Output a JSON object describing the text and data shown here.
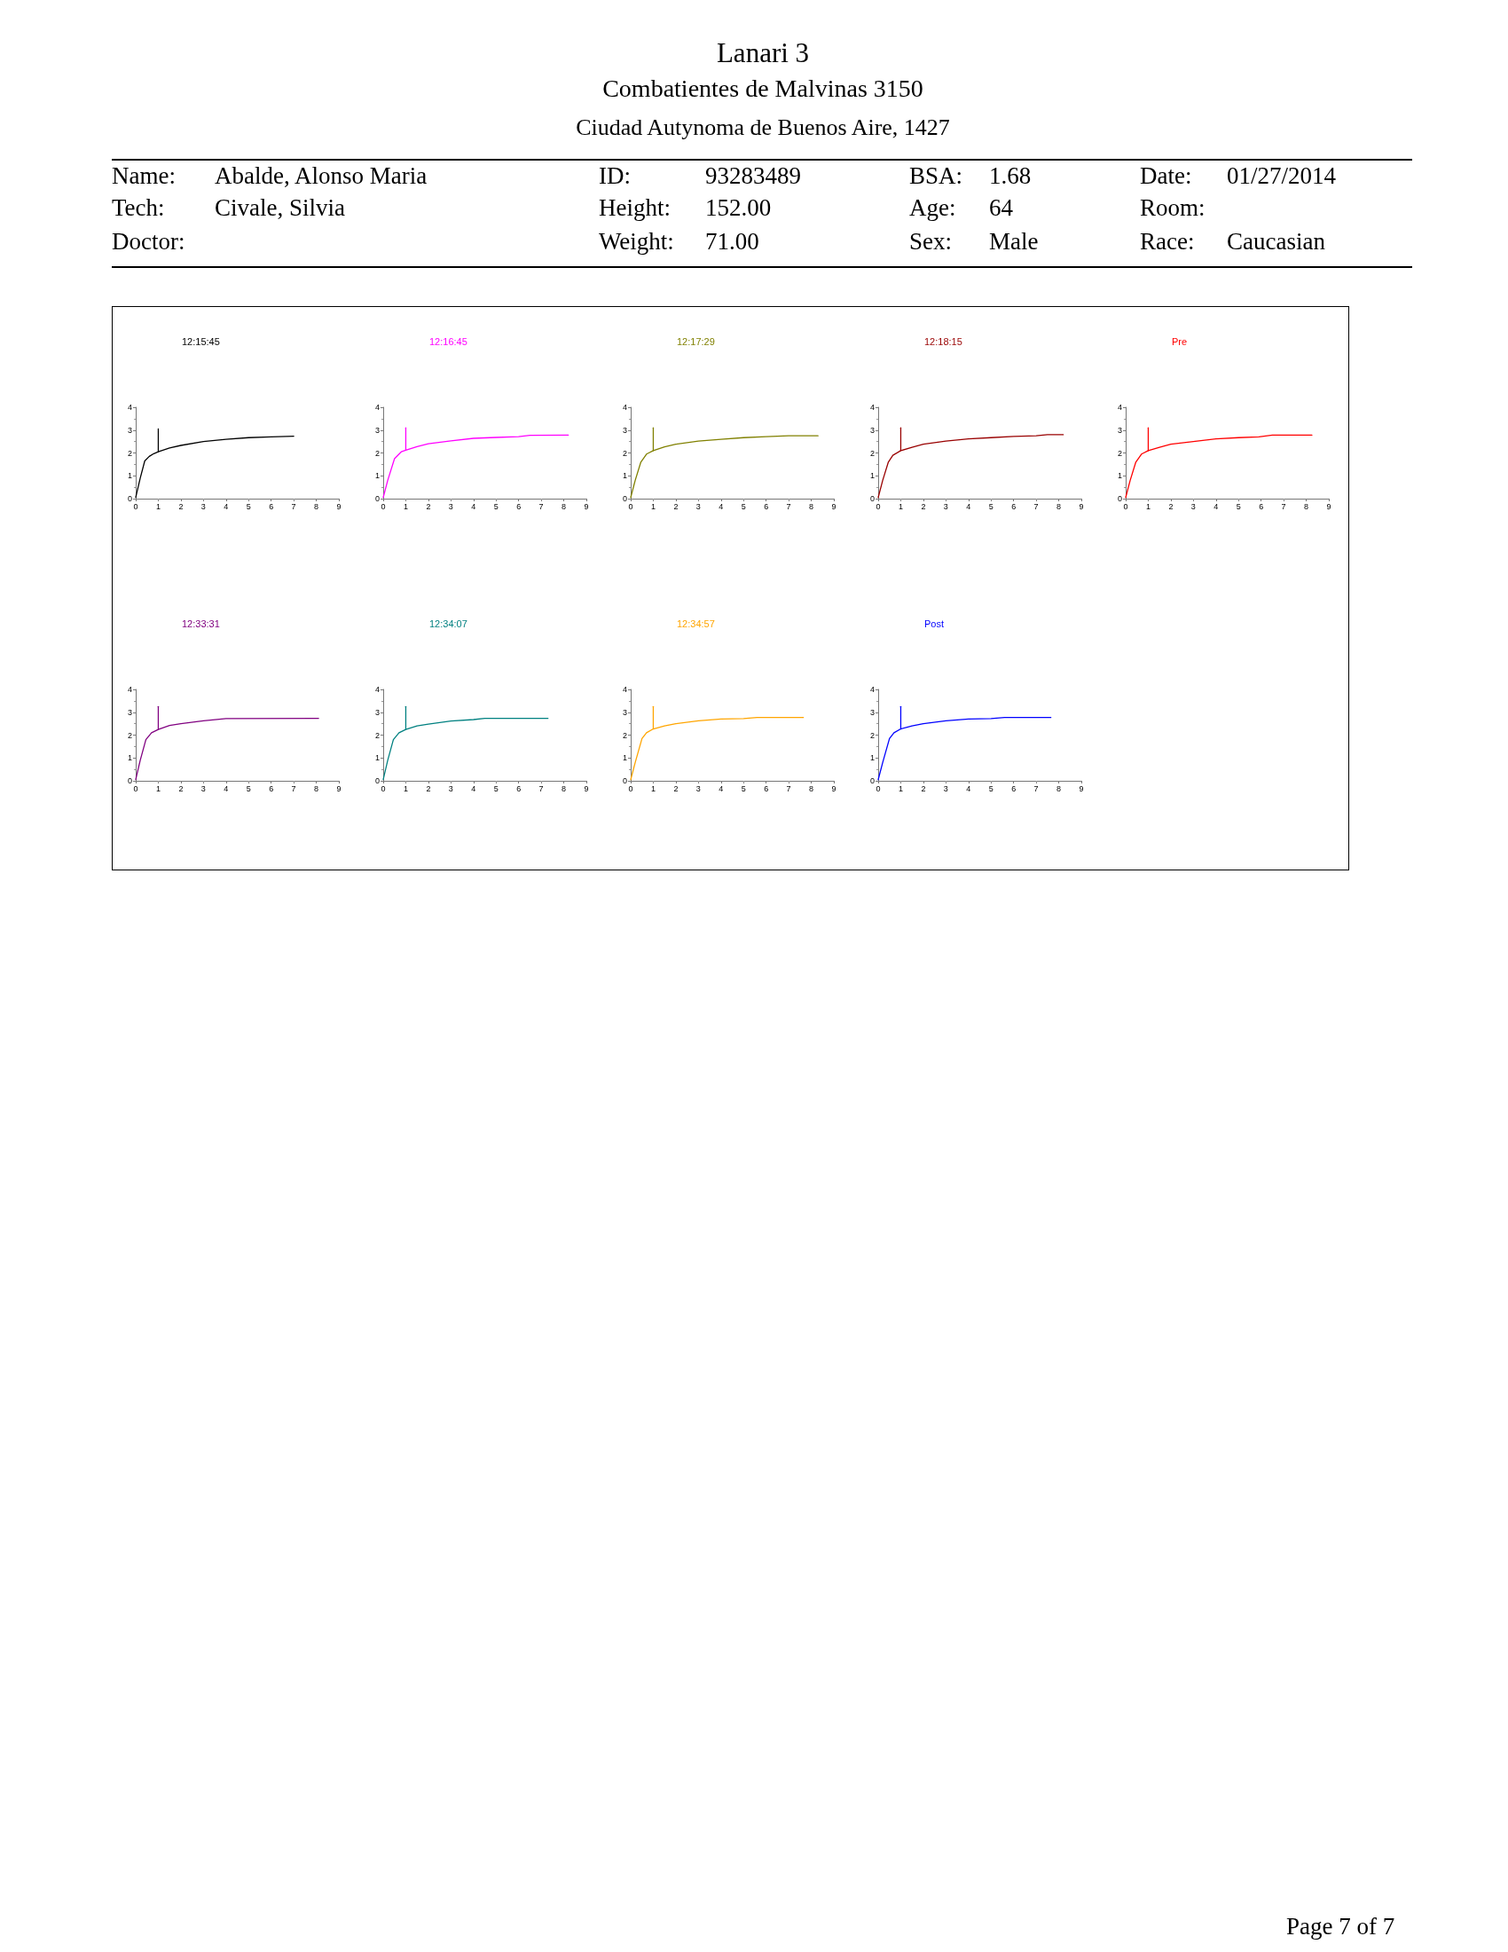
{
  "chart_data": [
    {
      "type": "other",
      "title": "Lanari 3",
      "annotations": [
        "Combatientes de Malvinas 3150",
        "Ciudad Autynoma de Buenos Aire, 1427",
        "Name:",
        "Abalde, Alonso Maria",
        "ID:",
        "93283489",
        "BSA:",
        "1.68",
        "Date:",
        "01/27/2014",
        "Tech:",
        "Civale, Silvia",
        "Height:",
        "152.00",
        "Age:",
        "64",
        "Room:",
        "Doctor:",
        "Weight:",
        "71.00",
        "Sex:",
        "Male",
        "Race:",
        "Caucasian",
        "Page 7 of 7"
      ]
    },
    {
      "type": "line",
      "title": "12:15:45",
      "xlim": [
        0,
        9
      ],
      "xticks": [
        0,
        1,
        2,
        3,
        4,
        5,
        6,
        7,
        8,
        9
      ],
      "ylim": [
        0,
        4
      ],
      "yticks": [
        0,
        1,
        2,
        3,
        4
      ],
      "grid": false,
      "marker": "none",
      "line_style": "solid",
      "series": [
        {
          "color": "#000000",
          "x": [
            0,
            0.2,
            0.4,
            0.6,
            0.8,
            1,
            1.5,
            2,
            3,
            4,
            5,
            6,
            7
          ],
          "values": [
            0.05,
            0.9,
            1.65,
            1.85,
            1.97,
            2.05,
            2.22,
            2.33,
            2.5,
            2.6,
            2.67,
            2.7,
            2.73
          ]
        },
        {
          "color": "#000000",
          "x": [
            1,
            1
          ],
          "values": [
            2.05,
            3.05
          ]
        }
      ]
    },
    {
      "type": "line",
      "title": "12:16:45",
      "xlim": [
        0,
        9
      ],
      "xticks": [
        0,
        1,
        2,
        3,
        4,
        5,
        6,
        7,
        8,
        9
      ],
      "ylim": [
        0,
        4
      ],
      "yticks": [
        0,
        1,
        2,
        3,
        4
      ],
      "grid": false,
      "marker": "none",
      "line_style": "solid",
      "series": [
        {
          "color": "#ff00ff",
          "x": [
            0,
            0.2,
            0.5,
            0.8,
            1,
            1.5,
            2,
            3,
            4,
            5,
            6,
            6.5,
            8.2
          ],
          "values": [
            0.05,
            0.8,
            1.75,
            2.05,
            2.12,
            2.28,
            2.4,
            2.53,
            2.64,
            2.68,
            2.71,
            2.77,
            2.78
          ]
        },
        {
          "color": "#ff00ff",
          "x": [
            1,
            1
          ],
          "values": [
            2.12,
            3.1
          ]
        }
      ]
    },
    {
      "type": "line",
      "title": "12:17:29",
      "xlim": [
        0,
        9
      ],
      "xticks": [
        0,
        1,
        2,
        3,
        4,
        5,
        6,
        7,
        8,
        9
      ],
      "ylim": [
        0,
        4
      ],
      "yticks": [
        0,
        1,
        2,
        3,
        4
      ],
      "grid": false,
      "marker": "none",
      "line_style": "solid",
      "series": [
        {
          "color": "#808000",
          "x": [
            0,
            0.2,
            0.45,
            0.7,
            1,
            1.5,
            2,
            3,
            4,
            5,
            6,
            7,
            8.3
          ],
          "values": [
            0.05,
            0.8,
            1.6,
            1.95,
            2.1,
            2.27,
            2.38,
            2.52,
            2.6,
            2.67,
            2.71,
            2.75,
            2.75
          ]
        },
        {
          "color": "#808000",
          "x": [
            1,
            1
          ],
          "values": [
            2.1,
            3.1
          ]
        }
      ]
    },
    {
      "type": "line",
      "title": "12:18:15",
      "xlim": [
        0,
        9
      ],
      "xticks": [
        0,
        1,
        2,
        3,
        4,
        5,
        6,
        7,
        8,
        9
      ],
      "ylim": [
        0,
        4
      ],
      "yticks": [
        0,
        1,
        2,
        3,
        4
      ],
      "grid": false,
      "marker": "none",
      "line_style": "solid",
      "series": [
        {
          "color": "#990000",
          "x": [
            0,
            0.2,
            0.45,
            0.65,
            1,
            1.5,
            2,
            3,
            4,
            5,
            6,
            7,
            7.5,
            8.2
          ],
          "values": [
            0.05,
            0.8,
            1.6,
            1.9,
            2.1,
            2.25,
            2.38,
            2.52,
            2.62,
            2.67,
            2.72,
            2.75,
            2.8,
            2.8
          ]
        },
        {
          "color": "#990000",
          "x": [
            1,
            1
          ],
          "values": [
            2.1,
            3.1
          ]
        }
      ]
    },
    {
      "type": "line",
      "title": "Pre",
      "xlim": [
        0,
        9
      ],
      "xticks": [
        0,
        1,
        2,
        3,
        4,
        5,
        6,
        7,
        8,
        9
      ],
      "ylim": [
        0,
        4
      ],
      "yticks": [
        0,
        1,
        2,
        3,
        4
      ],
      "grid": false,
      "marker": "none",
      "line_style": "solid",
      "series": [
        {
          "color": "#ff0000",
          "x": [
            0,
            0.2,
            0.45,
            0.7,
            1,
            1.5,
            2,
            3,
            4,
            5,
            5.9,
            6.5,
            8.25
          ],
          "values": [
            0.05,
            0.8,
            1.6,
            1.95,
            2.1,
            2.25,
            2.38,
            2.5,
            2.62,
            2.67,
            2.7,
            2.78,
            2.78
          ]
        },
        {
          "color": "#ff0000",
          "x": [
            1,
            1
          ],
          "values": [
            2.1,
            3.1
          ]
        }
      ]
    },
    {
      "type": "line",
      "title": "12:33:31",
      "xlim": [
        0,
        9
      ],
      "xticks": [
        0,
        1,
        2,
        3,
        4,
        5,
        6,
        7,
        8,
        9
      ],
      "ylim": [
        0,
        4
      ],
      "yticks": [
        0,
        1,
        2,
        3,
        4
      ],
      "grid": false,
      "marker": "none",
      "line_style": "solid",
      "series": [
        {
          "color": "#800080",
          "x": [
            0,
            0.2,
            0.45,
            0.7,
            1,
            1.5,
            2,
            3,
            4,
            8.1
          ],
          "values": [
            0.05,
            0.9,
            1.8,
            2.1,
            2.25,
            2.42,
            2.5,
            2.63,
            2.72,
            2.73
          ]
        },
        {
          "color": "#800080",
          "x": [
            1,
            1
          ],
          "values": [
            2.25,
            3.25
          ]
        }
      ]
    },
    {
      "type": "line",
      "title": "12:34:07",
      "xlim": [
        0,
        9
      ],
      "xticks": [
        0,
        1,
        2,
        3,
        4,
        5,
        6,
        7,
        8,
        9
      ],
      "ylim": [
        0,
        4
      ],
      "yticks": [
        0,
        1,
        2,
        3,
        4
      ],
      "grid": false,
      "marker": "none",
      "line_style": "solid",
      "series": [
        {
          "color": "#008080",
          "x": [
            0,
            0.2,
            0.45,
            0.7,
            1,
            1.5,
            2,
            3,
            4,
            4.5,
            7.3
          ],
          "values": [
            0.05,
            0.9,
            1.8,
            2.1,
            2.25,
            2.4,
            2.48,
            2.62,
            2.68,
            2.73,
            2.73
          ]
        },
        {
          "color": "#008080",
          "x": [
            1,
            1
          ],
          "values": [
            2.25,
            3.25
          ]
        }
      ]
    },
    {
      "type": "line",
      "title": "12:34:57",
      "xlim": [
        0,
        9
      ],
      "xticks": [
        0,
        1,
        2,
        3,
        4,
        5,
        6,
        7,
        8,
        9
      ],
      "ylim": [
        0,
        4
      ],
      "yticks": [
        0,
        1,
        2,
        3,
        4
      ],
      "grid": false,
      "marker": "none",
      "line_style": "solid",
      "series": [
        {
          "color": "#ffa500",
          "x": [
            0,
            0.2,
            0.5,
            0.7,
            1,
            1.5,
            2,
            3,
            4,
            5,
            5.6,
            7.65
          ],
          "values": [
            0.05,
            0.8,
            1.85,
            2.1,
            2.27,
            2.4,
            2.5,
            2.63,
            2.7,
            2.72,
            2.77,
            2.77
          ]
        },
        {
          "color": "#ffa500",
          "x": [
            1,
            1
          ],
          "values": [
            2.27,
            3.25
          ]
        }
      ]
    },
    {
      "type": "line",
      "title": "Post",
      "xlim": [
        0,
        9
      ],
      "xticks": [
        0,
        1,
        2,
        3,
        4,
        5,
        6,
        7,
        8,
        9
      ],
      "ylim": [
        0,
        4
      ],
      "yticks": [
        0,
        1,
        2,
        3,
        4
      ],
      "grid": false,
      "marker": "none",
      "line_style": "solid",
      "series": [
        {
          "color": "#0000ff",
          "x": [
            0,
            0.2,
            0.5,
            0.7,
            1,
            1.5,
            2,
            3,
            4,
            5,
            5.6,
            7.65
          ],
          "values": [
            0.05,
            0.8,
            1.85,
            2.1,
            2.27,
            2.4,
            2.5,
            2.63,
            2.7,
            2.72,
            2.77,
            2.77
          ]
        },
        {
          "color": "#0000ff",
          "x": [
            1,
            1
          ],
          "values": [
            2.27,
            3.25
          ]
        }
      ]
    }
  ]
}
